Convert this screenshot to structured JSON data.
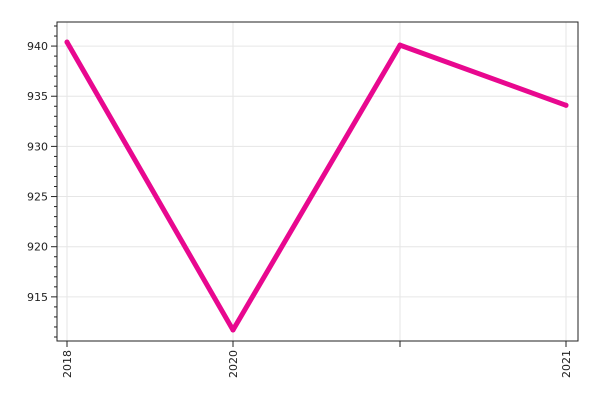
{
  "chart_data": {
    "type": "line",
    "title": "",
    "xlabel": "",
    "ylabel": "",
    "x_tick_labels": [
      "2018",
      "2020",
      "",
      "2021"
    ],
    "y_ticks": [
      915,
      920,
      925,
      930,
      935,
      940
    ],
    "ylim": [
      910.6,
      942.4
    ],
    "grid": true,
    "series": [
      {
        "values": [
          940.4,
          911.7,
          940.1,
          934.1
        ]
      }
    ]
  },
  "colors": {
    "line": "#e8088f",
    "axis": "#222222",
    "grid": "#e6e6e6"
  }
}
